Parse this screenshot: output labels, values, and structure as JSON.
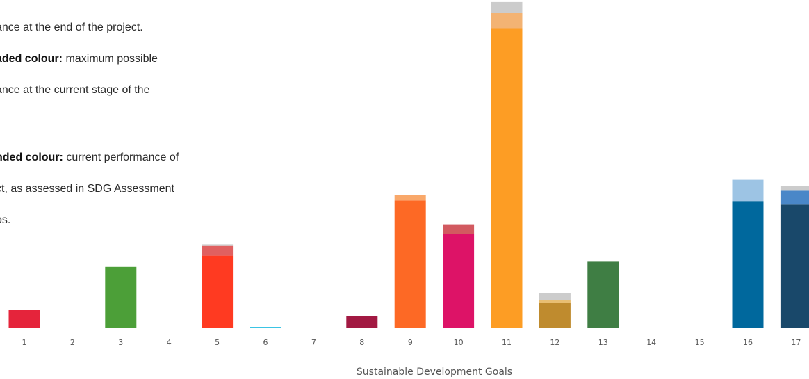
{
  "legend": {
    "line1": "ance at the end of the project.",
    "line2_bold": "aded colour:",
    "line2_rest": " maximum possible",
    "line3": "ance at the current stage of the",
    "line4_bold": "nded colour:",
    "line4_rest": " current performance of",
    "line5": "ct, as assessed in SDG Assessment",
    "line6": "ps."
  },
  "chart_data": {
    "type": "bar",
    "stacked": true,
    "xlabel": "Sustainable Development Goals",
    "ylabel": "",
    "grid": false,
    "ylim": [
      0,
      100
    ],
    "categories": [
      "1",
      "2",
      "3",
      "4",
      "5",
      "6",
      "7",
      "8",
      "9",
      "10",
      "11",
      "12",
      "13",
      "14",
      "15",
      "16",
      "17"
    ],
    "series": [
      {
        "key": "current",
        "values": [
          5.6,
          0,
          19.0,
          0,
          22.5,
          0.4,
          0,
          3.7,
          39.6,
          29.1,
          93.0,
          7.8,
          20.6,
          0,
          0,
          39.4,
          38.3
        ]
      },
      {
        "key": "max_stage",
        "values": [
          0,
          0,
          0,
          0,
          3.0,
          0,
          0,
          0,
          1.7,
          3.1,
          4.7,
          1.0,
          0,
          0,
          0,
          6.6,
          4.5
        ]
      },
      {
        "key": "max_end",
        "values": [
          0,
          0,
          0,
          0,
          0.5,
          0,
          0,
          0,
          0,
          0,
          3.4,
          2.2,
          0,
          0,
          0,
          0,
          1.3
        ]
      }
    ],
    "colors": {
      "current": [
        "#E5243B",
        "#DDA63A",
        "#4C9F38",
        "#C5192D",
        "#FF3A21",
        "#26BDE2",
        "#FCC30B",
        "#A21942",
        "#FD6925",
        "#DD1367",
        "#FD9D24",
        "#BF8B2E",
        "#3F7E44",
        "#0A97D9",
        "#56C02B",
        "#00689D",
        "#19486A"
      ],
      "max_stage": [
        "#F0919D",
        "#EED29C",
        "#A5CF9B",
        "#E28C96",
        "#E06060",
        "#92DEF0",
        "#FDE185",
        "#D08CA0",
        "#F9A86A",
        "#D25A60",
        "#F3B373",
        "#E8BE72",
        "#9FBEA1",
        "#84CBEC",
        "#AADF95",
        "#9DC4E4",
        "#4A87C8"
      ],
      "max_end": "#CCCCCC"
    }
  }
}
